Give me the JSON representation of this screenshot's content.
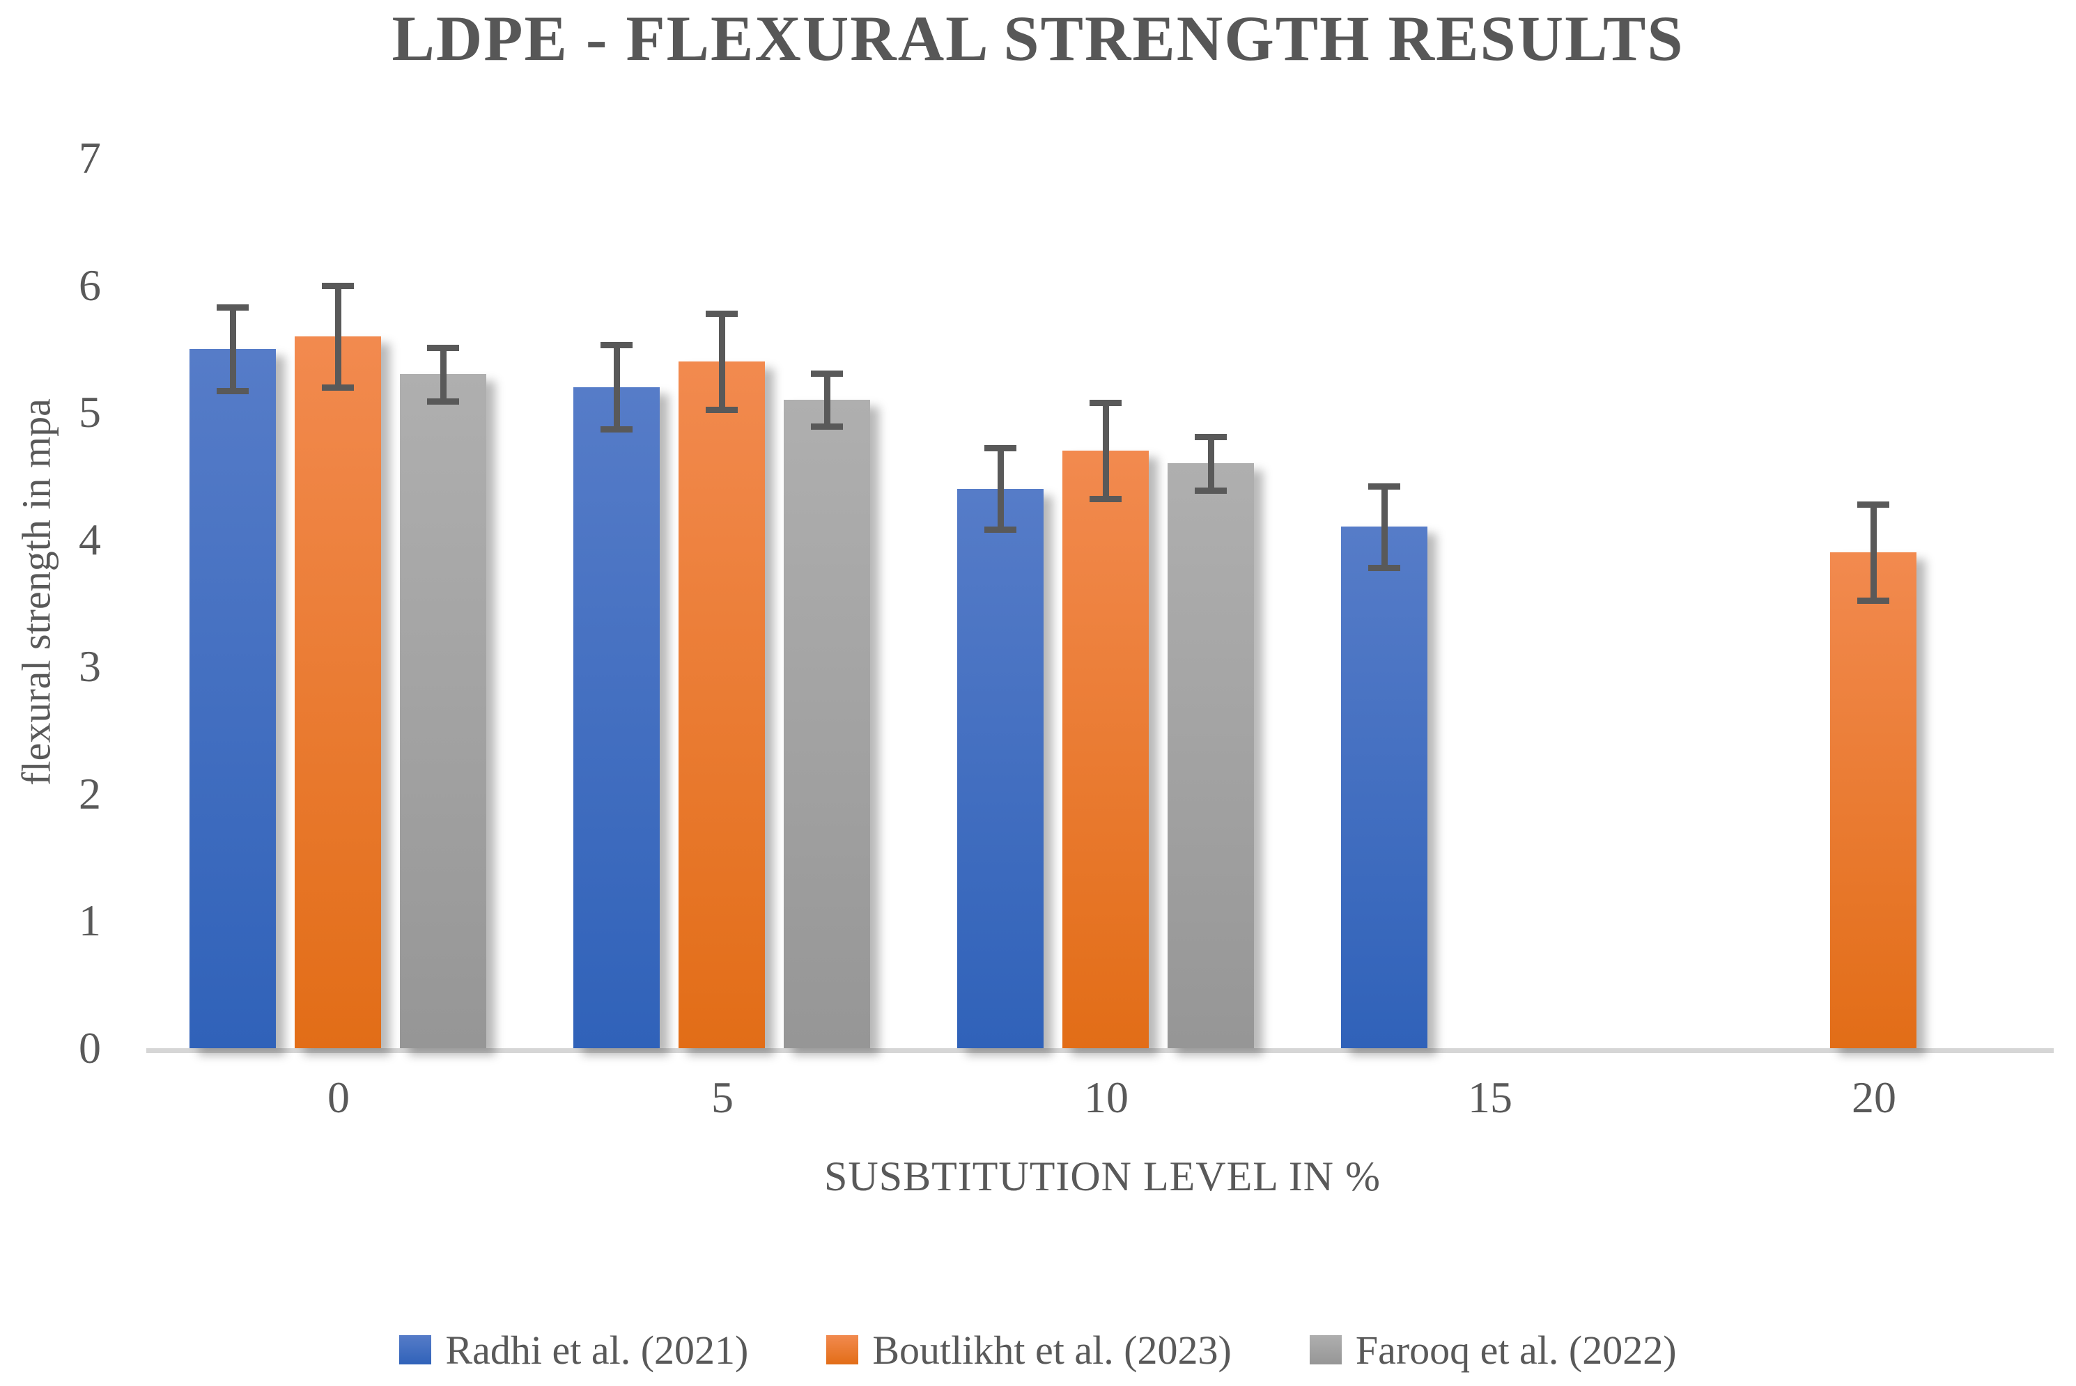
{
  "chart_data": {
    "type": "bar",
    "title": "LDPE - FLEXURAL STRENGTH RESULTS",
    "xlabel": "SUSBTITUTION LEVEL IN %",
    "ylabel": "flexural strength in mpa",
    "ylim": [
      0,
      7
    ],
    "yticks": [
      "0",
      "1",
      "2",
      "3",
      "4",
      "5",
      "6",
      "7"
    ],
    "categories": [
      "0",
      "5",
      "10",
      "15",
      "20"
    ],
    "grid": "off",
    "legend_position": "bottom",
    "error_bars": true,
    "series": [
      {
        "name": "Radhi et al. (2021)",
        "color_key": "blue",
        "values": [
          5.5,
          5.2,
          4.4,
          4.1,
          null
        ],
        "errors": [
          0.33,
          0.33,
          0.32,
          0.32,
          null
        ]
      },
      {
        "name": "Boutlikht et al. (2023)",
        "color_key": "orange",
        "values": [
          5.6,
          5.4,
          4.7,
          null,
          3.9
        ],
        "errors": [
          0.4,
          0.38,
          0.38,
          null,
          0.38
        ]
      },
      {
        "name": "Farooq et al. (2022)",
        "color_key": "gray",
        "values": [
          5.3,
          5.1,
          4.6,
          null,
          null
        ],
        "errors": [
          0.21,
          0.21,
          0.21,
          null,
          null
        ]
      }
    ]
  },
  "palette": {
    "blue": {
      "top": "#567CC8",
      "bottom": "#3062B9"
    },
    "orange": {
      "top": "#F28A4F",
      "bottom": "#E26D17"
    },
    "gray": {
      "top": "#AFAFAF",
      "bottom": "#969696"
    },
    "error_bar": "#595959",
    "axis_line": "#d6d6d6",
    "text": "#595959"
  }
}
